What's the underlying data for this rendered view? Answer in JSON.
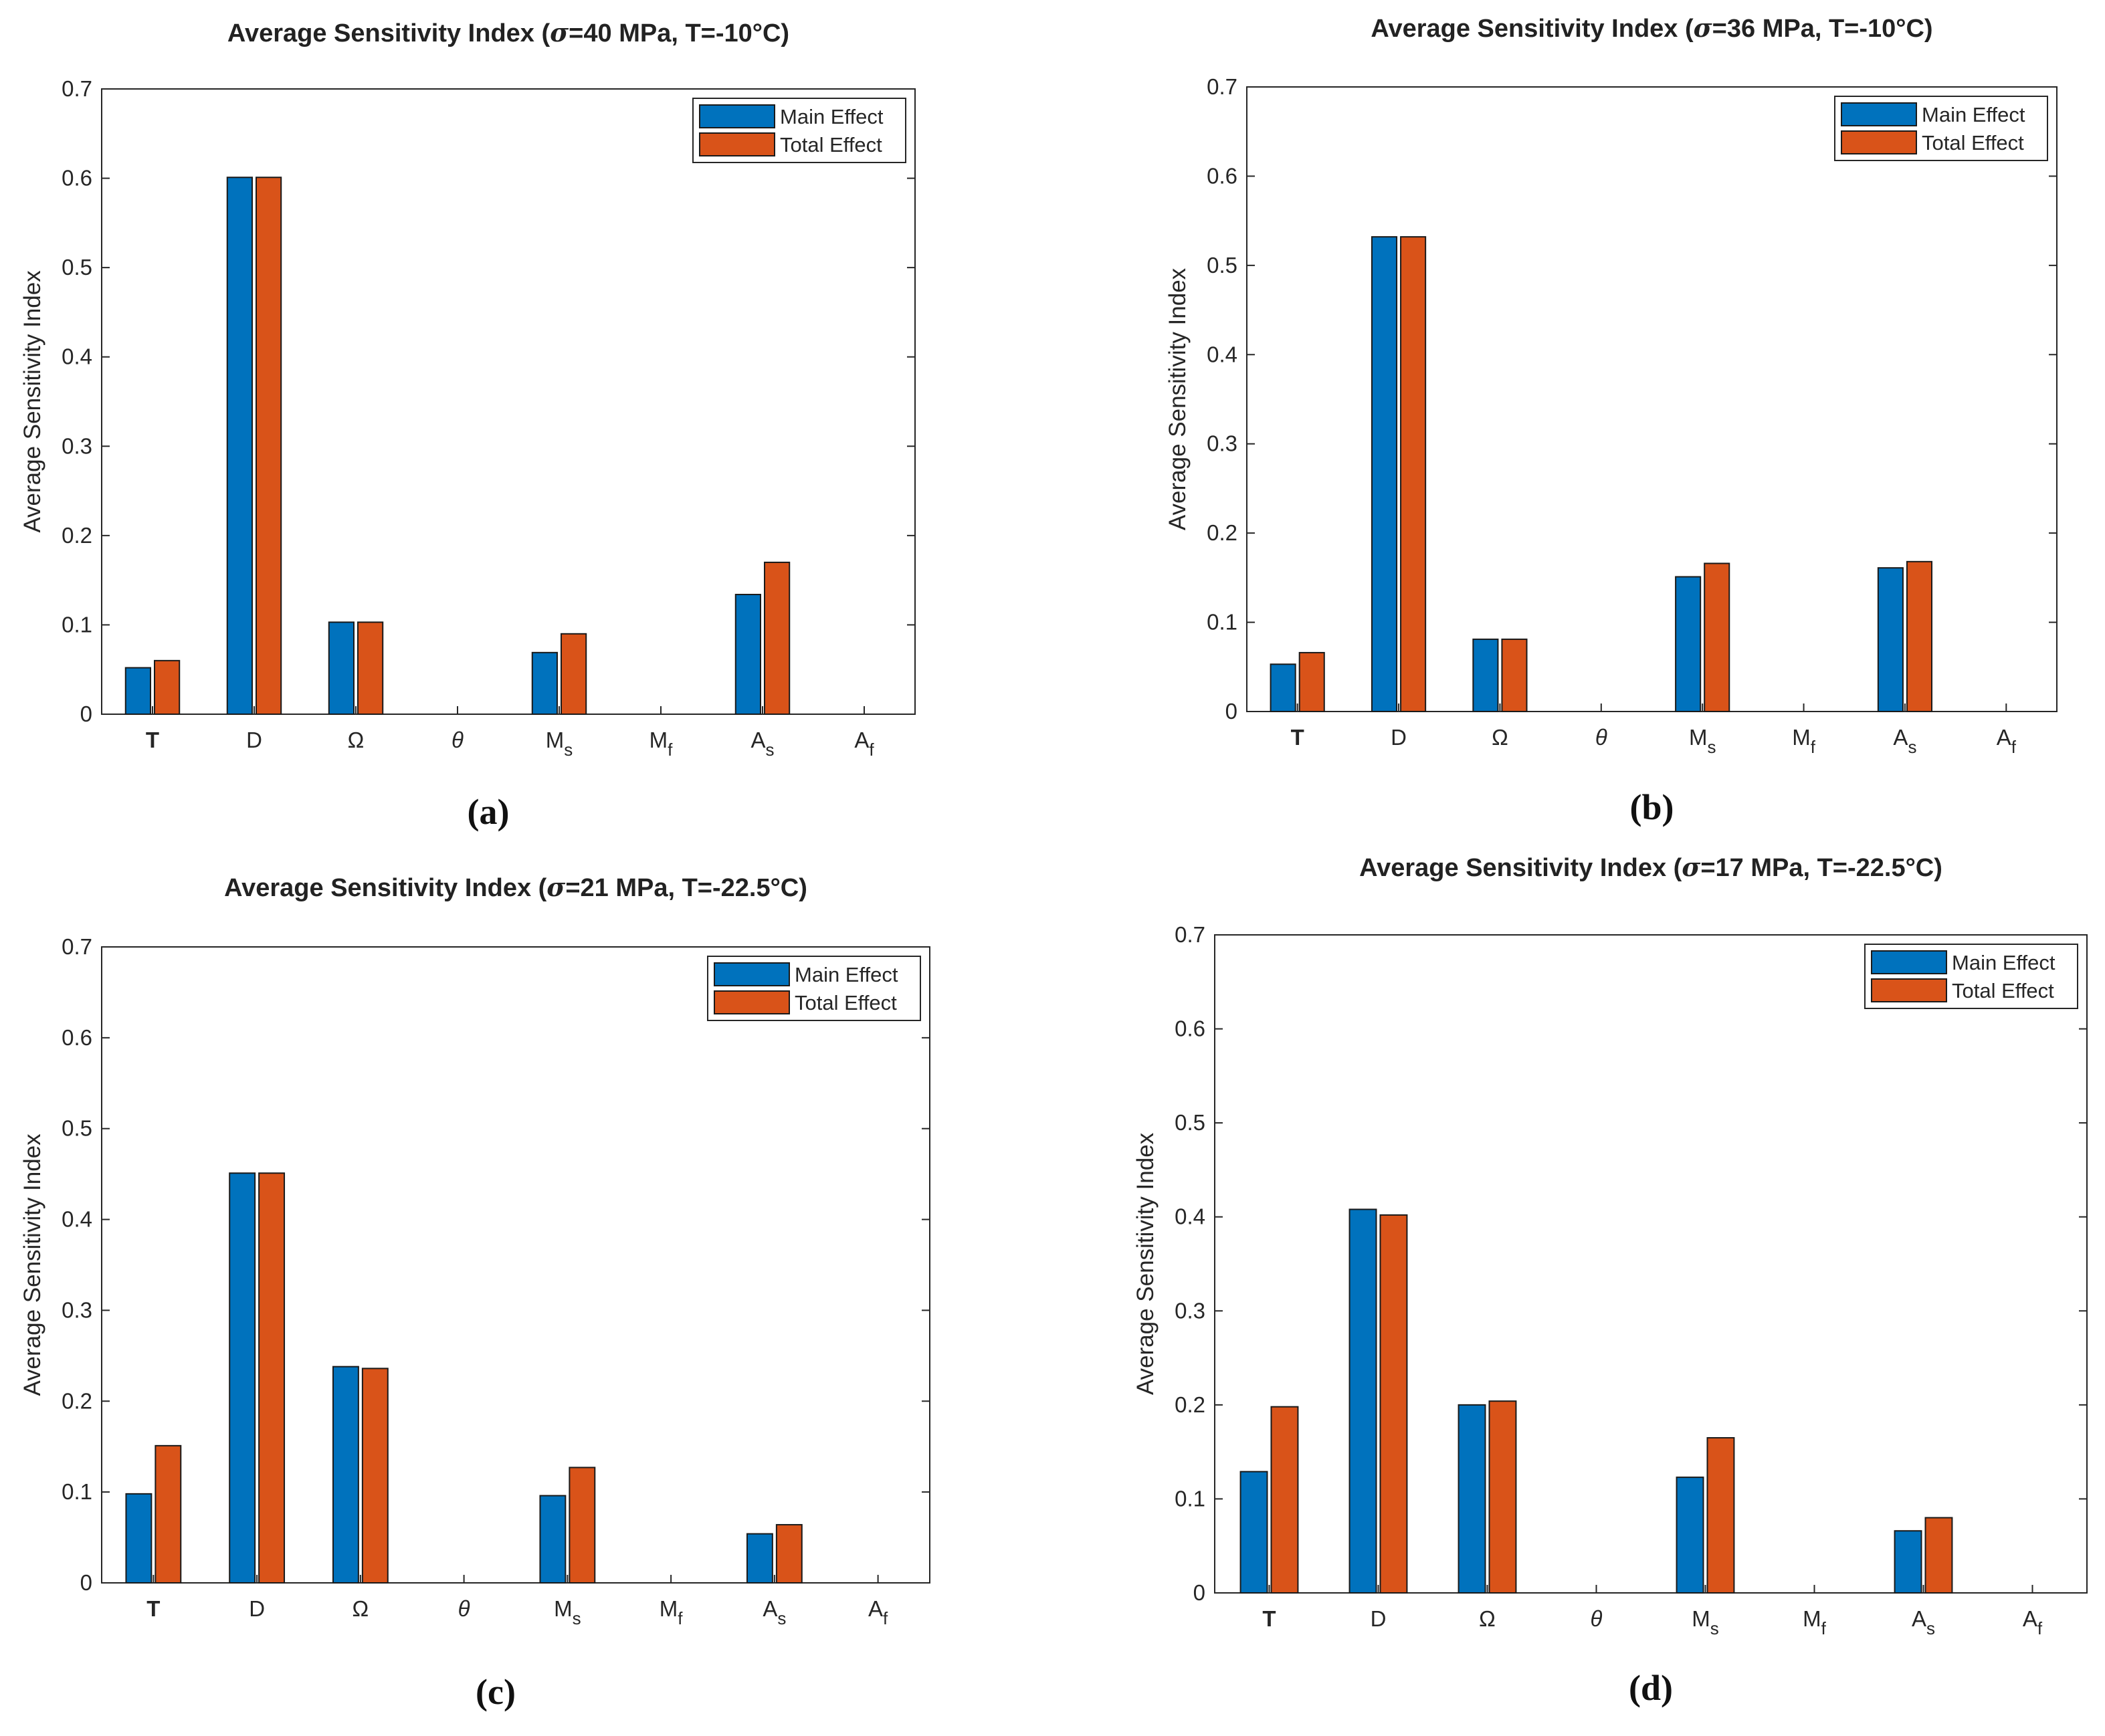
{
  "chart_data": [
    {
      "type": "bar",
      "panel_label": "(a)",
      "title": "Average Sensitivity Index (σ=40 MPa, T=-10°C)",
      "xlabel": "",
      "ylabel": "Average Sensitivity Index",
      "ylim": [
        0,
        0.7
      ],
      "yticks": [
        "0",
        "0.1",
        "0.2",
        "0.3",
        "0.4",
        "0.5",
        "0.6",
        "0.7"
      ],
      "categories": [
        "T",
        "D",
        "Ω",
        "θ",
        "Ms",
        "Mf",
        "As",
        "Af"
      ],
      "legend_position": "top-right",
      "series": [
        {
          "name": "Main Effect",
          "color": "#0072BD",
          "values": [
            0.052,
            0.601,
            0.103,
            0,
            0.069,
            0,
            0.134,
            0
          ]
        },
        {
          "name": "Total Effect",
          "color": "#D95319",
          "values": [
            0.06,
            0.601,
            0.103,
            0,
            0.09,
            0,
            0.17,
            0
          ]
        }
      ]
    },
    {
      "type": "bar",
      "panel_label": "(b)",
      "title": "Average Sensitivity Index (σ=36 MPa, T=-10°C)",
      "xlabel": "",
      "ylabel": "Average Sensitivity Index",
      "ylim": [
        0,
        0.7
      ],
      "yticks": [
        "0",
        "0.1",
        "0.2",
        "0.3",
        "0.4",
        "0.5",
        "0.6",
        "0.7"
      ],
      "categories": [
        "T",
        "D",
        "Ω",
        "θ",
        "Ms",
        "Mf",
        "As",
        "Af"
      ],
      "legend_position": "top-right",
      "series": [
        {
          "name": "Main Effect",
          "color": "#0072BD",
          "values": [
            0.053,
            0.532,
            0.081,
            0,
            0.151,
            0,
            0.161,
            0
          ]
        },
        {
          "name": "Total Effect",
          "color": "#D95319",
          "values": [
            0.066,
            0.532,
            0.081,
            0,
            0.166,
            0,
            0.168,
            0
          ]
        }
      ]
    },
    {
      "type": "bar",
      "panel_label": "(c)",
      "title": "Average Sensitivity Index (σ=21 MPa, T=-22.5°C)",
      "xlabel": "",
      "ylabel": "Average Sensitivity Index",
      "ylim": [
        0,
        0.7
      ],
      "yticks": [
        "0",
        "0.1",
        "0.2",
        "0.3",
        "0.4",
        "0.5",
        "0.6",
        "0.7"
      ],
      "categories": [
        "T",
        "D",
        "Ω",
        "θ",
        "Ms",
        "Mf",
        "As",
        "Af"
      ],
      "legend_position": "top-right",
      "series": [
        {
          "name": "Main Effect",
          "color": "#0072BD",
          "values": [
            0.098,
            0.451,
            0.238,
            0,
            0.096,
            0,
            0.054,
            0
          ]
        },
        {
          "name": "Total Effect",
          "color": "#D95319",
          "values": [
            0.151,
            0.451,
            0.236,
            0,
            0.127,
            0,
            0.064,
            0
          ]
        }
      ]
    },
    {
      "type": "bar",
      "panel_label": "(d)",
      "title": "Average Sensitivity Index (σ=17 MPa, T=-22.5°C)",
      "xlabel": "",
      "ylabel": "Average Sensitivity Index",
      "ylim": [
        0,
        0.7
      ],
      "yticks": [
        "0",
        "0.1",
        "0.2",
        "0.3",
        "0.4",
        "0.5",
        "0.6",
        "0.7"
      ],
      "categories": [
        "T",
        "D",
        "Ω",
        "θ",
        "Ms",
        "Mf",
        "As",
        "Af"
      ],
      "legend_position": "top-right",
      "series": [
        {
          "name": "Main Effect",
          "color": "#0072BD",
          "values": [
            0.129,
            0.408,
            0.2,
            0,
            0.123,
            0,
            0.066,
            0
          ]
        },
        {
          "name": "Total Effect",
          "color": "#D95319",
          "values": [
            0.198,
            0.402,
            0.204,
            0,
            0.165,
            0,
            0.08,
            0
          ]
        }
      ]
    }
  ]
}
